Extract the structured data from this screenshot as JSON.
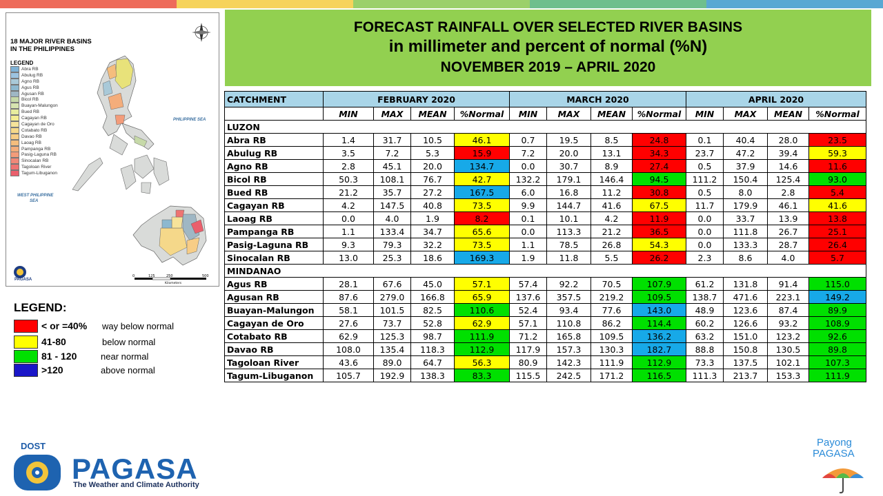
{
  "title": {
    "line1": "FORECAST RAINFALL OVER SELECTED RIVER BASINS",
    "line2": "in millimeter  and percent of normal (%N)",
    "line3": "NOVEMBER 2019 – APRIL 2020"
  },
  "table": {
    "catchment_label": "CATCHMENT",
    "months": [
      "FEBRUARY 2020",
      "MARCH 2020",
      "APRIL 2020"
    ],
    "subheaders": [
      "MIN",
      "MAX",
      "MEAN",
      "%Normal"
    ],
    "regions": [
      {
        "name": "LUZON",
        "rows": [
          {
            "name": "Abra RB",
            "vals": [
              "1.4",
              "31.7",
              "10.5",
              "46.1",
              "0.7",
              "19.5",
              "8.5",
              "24.8",
              "0.1",
              "40.4",
              "28.0",
              "23.5"
            ],
            "cats": [
              "yellow",
              "red",
              "red"
            ]
          },
          {
            "name": "Abulug RB",
            "vals": [
              "3.5",
              "7.2",
              "5.3",
              "15.9",
              "7.2",
              "20.0",
              "13.1",
              "34.3",
              "23.7",
              "47.2",
              "39.4",
              "59.3"
            ],
            "cats": [
              "red",
              "red",
              "yellow"
            ]
          },
          {
            "name": "Agno RB",
            "vals": [
              "2.8",
              "45.1",
              "20.0",
              "134.7",
              "0.0",
              "30.7",
              "8.9",
              "27.4",
              "0.5",
              "37.9",
              "14.6",
              "11.6"
            ],
            "cats": [
              "blue",
              "red",
              "red"
            ]
          },
          {
            "name": "Bicol RB",
            "vals": [
              "50.3",
              "108.1",
              "76.7",
              "42.7",
              "132.2",
              "179.1",
              "146.4",
              "94.5",
              "111.2",
              "150.4",
              "125.4",
              "93.0"
            ],
            "cats": [
              "yellow",
              "green",
              "green"
            ]
          },
          {
            "name": "Bued RB",
            "vals": [
              "21.2",
              "35.7",
              "27.2",
              "167.5",
              "6.0",
              "16.8",
              "11.2",
              "30.8",
              "0.5",
              "8.0",
              "2.8",
              "5.4"
            ],
            "cats": [
              "blue",
              "red",
              "red"
            ]
          },
          {
            "name": "Cagayan RB",
            "vals": [
              "4.2",
              "147.5",
              "40.8",
              "73.5",
              "9.9",
              "144.7",
              "41.6",
              "67.5",
              "11.7",
              "179.9",
              "46.1",
              "41.6"
            ],
            "cats": [
              "yellow",
              "yellow",
              "yellow"
            ]
          },
          {
            "name": "Laoag RB",
            "vals": [
              "0.0",
              "4.0",
              "1.9",
              "8.2",
              "0.1",
              "10.1",
              "4.2",
              "11.9",
              "0.0",
              "33.7",
              "13.9",
              "13.8"
            ],
            "cats": [
              "red",
              "red",
              "red"
            ]
          },
          {
            "name": "Pampanga RB",
            "vals": [
              "1.1",
              "133.4",
              "34.7",
              "65.6",
              "0.0",
              "113.3",
              "21.2",
              "36.5",
              "0.0",
              "111.8",
              "26.7",
              "25.1"
            ],
            "cats": [
              "yellow",
              "red",
              "red"
            ]
          },
          {
            "name": "Pasig-Laguna RB",
            "vals": [
              "9.3",
              "79.3",
              "32.2",
              "73.5",
              "1.1",
              "78.5",
              "26.8",
              "54.3",
              "0.0",
              "133.3",
              "28.7",
              "26.4"
            ],
            "cats": [
              "yellow",
              "yellow",
              "red"
            ]
          },
          {
            "name": "Sinocalan RB",
            "vals": [
              "13.0",
              "25.3",
              "18.6",
              "169.3",
              "1.9",
              "11.8",
              "5.5",
              "26.2",
              "2.3",
              "8.6",
              "4.0",
              "5.7"
            ],
            "cats": [
              "blue",
              "red",
              "red"
            ]
          }
        ]
      },
      {
        "name": "MINDANAO",
        "rows": [
          {
            "name": "Agus RB",
            "vals": [
              "28.1",
              "67.6",
              "45.0",
              "57.1",
              "57.4",
              "92.2",
              "70.5",
              "107.9",
              "61.2",
              "131.8",
              "91.4",
              "115.0"
            ],
            "cats": [
              "yellow",
              "green",
              "green"
            ]
          },
          {
            "name": "Agusan RB",
            "vals": [
              "87.6",
              "279.0",
              "166.8",
              "65.9",
              "137.6",
              "357.5",
              "219.2",
              "109.5",
              "138.7",
              "471.6",
              "223.1",
              "149.2"
            ],
            "cats": [
              "yellow",
              "green",
              "blue"
            ]
          },
          {
            "name": "Buayan-Malungon",
            "vals": [
              "58.1",
              "101.5",
              "82.5",
              "110.6",
              "52.4",
              "93.4",
              "77.6",
              "143.0",
              "48.9",
              "123.6",
              "87.4",
              "89.9"
            ],
            "cats": [
              "green",
              "blue",
              "green"
            ]
          },
          {
            "name": "Cagayan de Oro",
            "vals": [
              "27.6",
              "73.7",
              "52.8",
              "62.9",
              "57.1",
              "110.8",
              "86.2",
              "114.4",
              "60.2",
              "126.6",
              "93.2",
              "108.9"
            ],
            "cats": [
              "yellow",
              "green",
              "green"
            ]
          },
          {
            "name": "Cotabato RB",
            "vals": [
              "62.9",
              "125.3",
              "98.7",
              "111.9",
              "71.2",
              "165.8",
              "109.5",
              "136.2",
              "63.2",
              "151.0",
              "123.2",
              "92.6"
            ],
            "cats": [
              "green",
              "blue",
              "green"
            ]
          },
          {
            "name": "Davao RB",
            "vals": [
              "108.0",
              "135.4",
              "118.3",
              "112.9",
              "117.9",
              "157.3",
              "130.3",
              "182.7",
              "88.8",
              "150.8",
              "130.5",
              "89.8"
            ],
            "cats": [
              "green",
              "blue",
              "green"
            ]
          },
          {
            "name": "Tagoloan River",
            "vals": [
              "43.6",
              "89.0",
              "64.7",
              "56.3",
              "80.9",
              "142.3",
              "111.9",
              "112.9",
              "73.3",
              "137.5",
              "102.1",
              "107.3"
            ],
            "cats": [
              "yellow",
              "green",
              "green"
            ]
          },
          {
            "name": "Tagum-Libuganon",
            "vals": [
              "105.7",
              "192.9",
              "138.3",
              "83.3",
              "115.5",
              "242.5",
              "171.2",
              "116.5",
              "111.3",
              "213.7",
              "153.3",
              "111.9"
            ],
            "cats": [
              "green",
              "green",
              "green"
            ]
          }
        ]
      }
    ]
  },
  "map": {
    "title_line1": "18 MAJOR RIVER BASINS",
    "title_line2": "IN THE PHILIPPINES",
    "legend_title": "LEGEND",
    "legend_items": [
      {
        "label": "Abra RB",
        "color": "#7fb2d6"
      },
      {
        "label": "Abulug RB",
        "color": "#9cc3e0"
      },
      {
        "label": "Agno RB",
        "color": "#a9c9d8"
      },
      {
        "label": "Agus RB",
        "color": "#8db8cf"
      },
      {
        "label": "Agusan RB",
        "color": "#9fb7c4"
      },
      {
        "label": "Bicol RB",
        "color": "#c6d9a8"
      },
      {
        "label": "Buayan-Malungon",
        "color": "#d7e4b0"
      },
      {
        "label": "Bued RB",
        "color": "#e7ec9e"
      },
      {
        "label": "Cagayan RB",
        "color": "#f3ec93"
      },
      {
        "label": "Cagayan de Oro",
        "color": "#f6e39a"
      },
      {
        "label": "Cotabato RB",
        "color": "#f5d88a"
      },
      {
        "label": "Davao RB",
        "color": "#f7cd86"
      },
      {
        "label": "Laoag RB",
        "color": "#f5bd7d"
      },
      {
        "label": "Pampanga RB",
        "color": "#f4ad7b"
      },
      {
        "label": "Pasig-Laguna RB",
        "color": "#f39c7a"
      },
      {
        "label": "Sinocalan RB",
        "color": "#f08878"
      },
      {
        "label": "Tagoloan River",
        "color": "#ee7472"
      },
      {
        "label": "Tagum-Libuganon",
        "color": "#ea5f6c"
      }
    ],
    "sea_labels": [
      "PHILIPPINE SEA",
      "WEST PHILIPPINE",
      "SEA"
    ],
    "scale_labels": [
      "0",
      "125",
      "250",
      "500"
    ],
    "scale_unit": "Kilometers",
    "logo_text": "PAGASA"
  },
  "legend": {
    "title": "LEGEND:",
    "items": [
      {
        "range": "< or =40%",
        "desc": "way below normal",
        "color": "#ff0000"
      },
      {
        "range": "41-80",
        "desc": "below normal",
        "color": "#ffff00"
      },
      {
        "range": "81 - 120",
        "desc": "near normal",
        "color": "#00e000"
      },
      {
        "range": ">120",
        "desc": "above normal",
        "color": "#1a16c8"
      }
    ]
  },
  "colors": {
    "red": "#ff0000",
    "yellow": "#ffff00",
    "green": "#00e000",
    "blue": "#17a9e8",
    "title_bg": "#92d050",
    "header_bg": "#a9d5e8"
  },
  "topbar_colors": [
    "#ee6b5a",
    "#f6d35b",
    "#9bd06a",
    "#6fbf8d",
    "#59a8d3"
  ],
  "footer": {
    "dost": "DOST",
    "pagasa": "PAGASA",
    "tagline": "The Weather and Climate Authority",
    "payong1": "Payong",
    "payong2": "PAGASA"
  }
}
